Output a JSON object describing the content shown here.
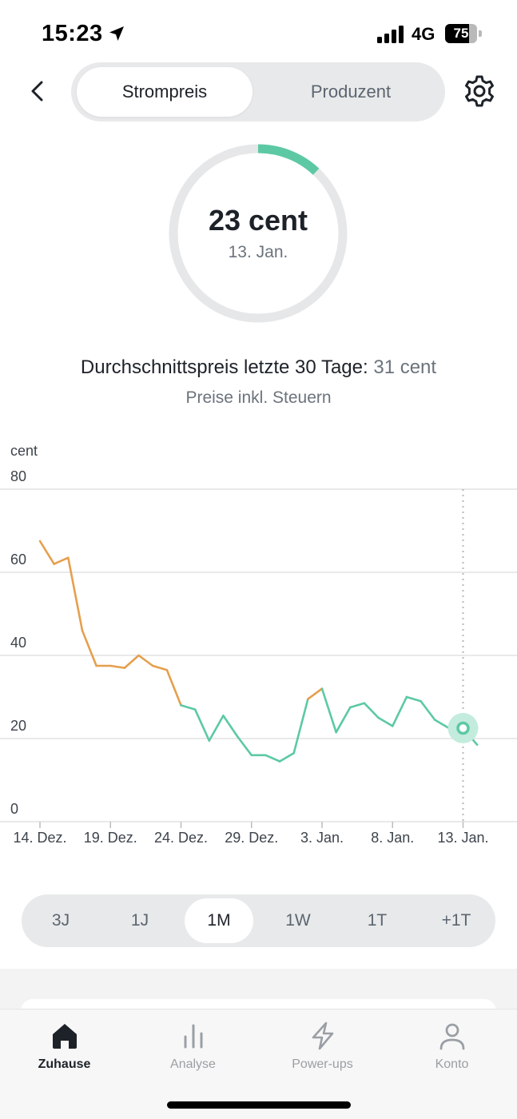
{
  "status_bar": {
    "time": "15:23",
    "network": "4G",
    "battery": "75",
    "battery_level": 0.75,
    "icons": [
      "location-arrow-icon",
      "signal-icon",
      "battery-icon"
    ]
  },
  "header": {
    "back_icon": "chevron-left-icon",
    "tabs": [
      {
        "label": "Strompreis",
        "active": true
      },
      {
        "label": "Produzent",
        "active": false
      }
    ],
    "settings_icon": "gear-icon"
  },
  "gauge": {
    "value": "23 cent",
    "date": "13. Jan.",
    "fill_fraction": 0.12,
    "colors": {
      "track": "#e6e7e8",
      "fill": "#5cc9a4"
    }
  },
  "summary": {
    "avg_label": "Durchschnittspreis letzte 30 Tage:",
    "avg_value": "31 cent",
    "tax_note": "Preise inkl. Steuern"
  },
  "chart_data": {
    "type": "line",
    "ylabel": "cent",
    "ylim": [
      0,
      80
    ],
    "yticks": [
      "0",
      "20",
      "40",
      "60",
      "80"
    ],
    "xlim": [
      14,
      48
    ],
    "xticks": [
      {
        "day": 14,
        "label": "14. Dez."
      },
      {
        "day": 19,
        "label": "19. Dez."
      },
      {
        "day": 24,
        "label": "24. Dez."
      },
      {
        "day": 29,
        "label": "29. Dez."
      },
      {
        "day": 34,
        "label": "3. Jan."
      },
      {
        "day": 39,
        "label": "8. Jan."
      },
      {
        "day": 44,
        "label": "13. Jan."
      }
    ],
    "x": [
      14,
      15,
      16,
      17,
      18,
      19,
      20,
      21,
      22,
      23,
      24,
      25,
      26,
      27,
      28,
      29,
      30,
      31,
      32,
      33,
      34,
      35,
      36,
      37,
      38,
      39,
      40,
      41,
      42,
      43,
      44,
      45
    ],
    "values": [
      67.5,
      62,
      63.5,
      46,
      37.5,
      37.5,
      37,
      40,
      37.5,
      36.5,
      28,
      27,
      19.5,
      25.5,
      20.5,
      16,
      16,
      14.5,
      16.5,
      29.5,
      32,
      21.5,
      27.5,
      28.5,
      25,
      23,
      30,
      29,
      24.5,
      22.5,
      22.5,
      18.5
    ],
    "high_threshold": 30,
    "colors": {
      "high": "#e69f4d",
      "low": "#5cc9a4",
      "grid": "#dcdcdc",
      "marker_ring": "#c3ecdd"
    },
    "marker": {
      "day": 44,
      "value": 22.5
    },
    "grid": true
  },
  "range_selector": {
    "options": [
      {
        "label": "3J",
        "active": false
      },
      {
        "label": "1J",
        "active": false
      },
      {
        "label": "1M",
        "active": true
      },
      {
        "label": "1W",
        "active": false
      },
      {
        "label": "1T",
        "active": false
      },
      {
        "label": "+1T",
        "active": false
      }
    ]
  },
  "tab_bar": {
    "items": [
      {
        "label": "Zuhause",
        "icon": "home-icon",
        "active": true
      },
      {
        "label": "Analyse",
        "icon": "bar-chart-icon",
        "active": false
      },
      {
        "label": "Power-ups",
        "icon": "lightning-icon",
        "active": false
      },
      {
        "label": "Konto",
        "icon": "user-icon",
        "active": false
      }
    ]
  }
}
